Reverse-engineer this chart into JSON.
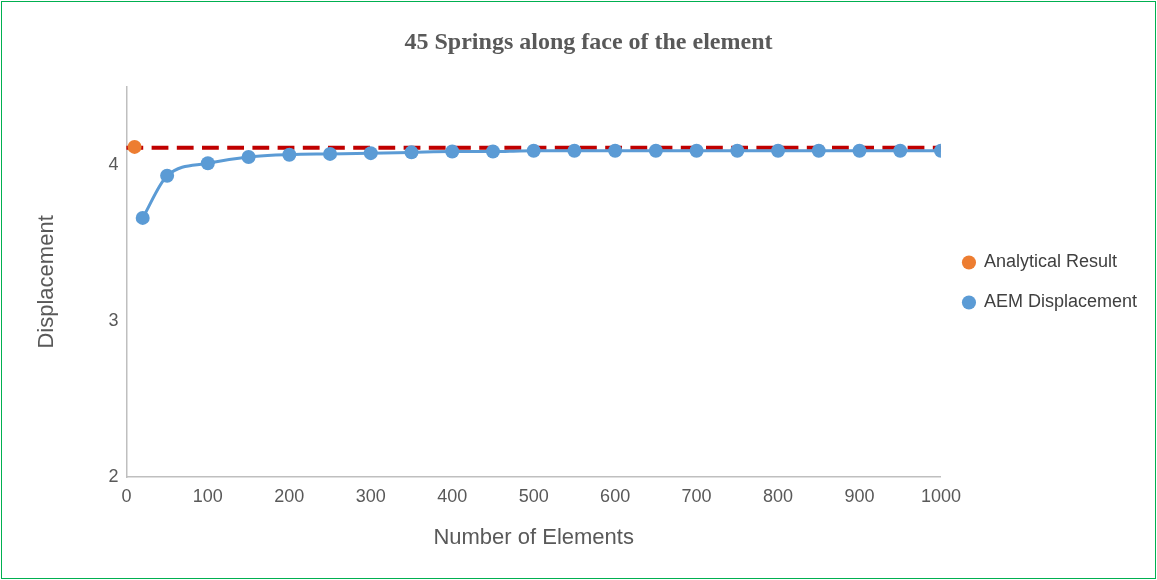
{
  "chart_data": {
    "type": "line",
    "title": "45 Springs along face of the element",
    "xlabel": "Number of Elements",
    "ylabel": "Displacement",
    "series": [
      {
        "name": "Analytical Result",
        "color": "#ed7d31",
        "x": [
          10
        ],
        "values": [
          4.115
        ]
      },
      {
        "name": "AEM Displacement",
        "color": "#5b9bd5",
        "x": [
          20,
          50,
          100,
          150,
          200,
          250,
          300,
          350,
          400,
          450,
          500,
          550,
          600,
          650,
          700,
          750,
          800,
          850,
          900,
          950,
          1000
        ],
        "values": [
          3.66,
          3.93,
          4.01,
          4.05,
          4.065,
          4.07,
          4.075,
          4.08,
          4.085,
          4.085,
          4.09,
          4.09,
          4.09,
          4.09,
          4.09,
          4.09,
          4.09,
          4.09,
          4.09,
          4.09,
          4.09
        ]
      }
    ],
    "ref_lines": [
      {
        "axis": "y",
        "value": 4.11,
        "color": "#c00000",
        "line_style": "dashed"
      }
    ],
    "xlim": [
      0,
      1000
    ],
    "xticks": [
      0,
      100,
      200,
      300,
      400,
      500,
      600,
      700,
      800,
      900,
      1000
    ],
    "ylim": [
      2,
      4.5
    ],
    "yticks": [
      2,
      3,
      4
    ],
    "grid": false,
    "legend": "right",
    "marker": "circle",
    "line_style": "solid"
  }
}
